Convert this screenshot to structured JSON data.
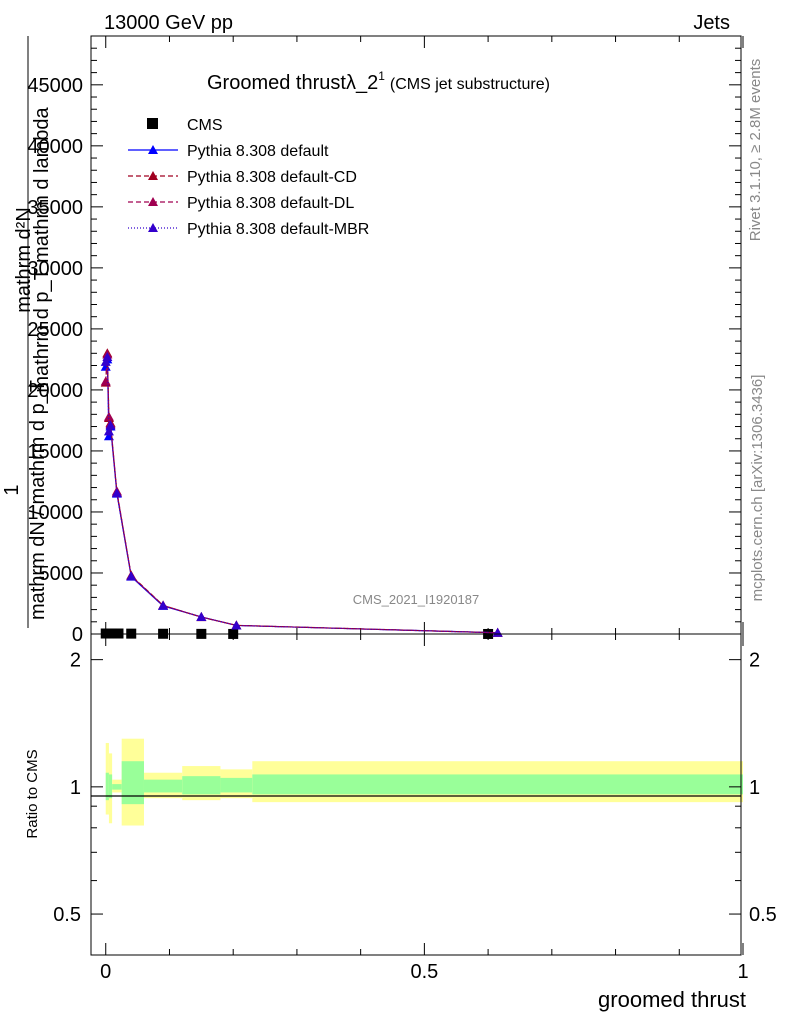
{
  "header": {
    "left": "13000 GeV pp",
    "right": "Jets"
  },
  "side_labels": {
    "rivet": "Rivet 3.1.10, ≥ 2.8M events",
    "mcplots": "mcplots.cern.ch [arXiv:1306.3436]"
  },
  "watermark": "CMS_2021_I1920187",
  "chart_data": [
    {
      "type": "line",
      "title": "Groomed thrustλ_2",
      "title_sup": "1",
      "title_note": "(CMS jet substructure)",
      "ylabel": "1 / mathrm dN / mathrm d p_T mathrm d lambda",
      "ylabel_frac": {
        "num": "mathrm d²N",
        "den": "mathrm d p_T mathrm d lambda",
        "pre": "1",
        "pre_den": "mathrm dN / mathrm d p_T"
      },
      "xlim": [
        -0.02,
        1.0
      ],
      "ylim": [
        0,
        49000
      ],
      "yticks_major": [
        0,
        5000,
        10000,
        15000,
        20000,
        25000,
        30000,
        35000,
        40000,
        45000
      ],
      "ytick_labels": [
        "0",
        "5000",
        "10000",
        "15000",
        "20000",
        "25000",
        "30000",
        "35000",
        "40000",
        "45000"
      ],
      "legend_position": "top-left",
      "cms": {
        "name": "CMS",
        "x": [
          0.0,
          0.005,
          0.01,
          0.02,
          0.04,
          0.09,
          0.15,
          0.2,
          0.6
        ],
        "y": [
          40,
          40,
          40,
          40,
          30,
          20,
          10,
          5,
          2
        ]
      },
      "series": [
        {
          "name": "Pythia 8.308 default",
          "color": "#0000ff",
          "dash": "",
          "x": [
            0.0,
            0.0025,
            0.005,
            0.0075,
            0.0175,
            0.04,
            0.09,
            0.15,
            0.205,
            0.615
          ],
          "y": [
            21900,
            22500,
            16200,
            17000,
            11500,
            4700,
            2300,
            1400,
            700,
            100
          ]
        },
        {
          "name": "Pythia 8.308 default-CD",
          "color": "#a00020",
          "dash": "5,3",
          "x": [
            0.0,
            0.0025,
            0.005,
            0.0075,
            0.0175,
            0.04,
            0.09,
            0.15,
            0.205,
            0.615
          ],
          "y": [
            20600,
            23000,
            17700,
            17300,
            11600,
            4800,
            2350,
            1380,
            710,
            100
          ]
        },
        {
          "name": "Pythia 8.308 default-DL",
          "color": "#a00050",
          "dash": "5,3",
          "x": [
            0.0,
            0.0025,
            0.005,
            0.0075,
            0.0175,
            0.04,
            0.09,
            0.15,
            0.205,
            0.615
          ],
          "y": [
            20700,
            22900,
            17800,
            17200,
            11700,
            4750,
            2340,
            1390,
            705,
            100
          ]
        },
        {
          "name": "Pythia 8.308 default-MBR",
          "color": "#3300cc",
          "dash": "1,2",
          "x": [
            0.0,
            0.0025,
            0.005,
            0.0075,
            0.0175,
            0.04,
            0.09,
            0.15,
            0.205,
            0.615
          ],
          "y": [
            22300,
            22700,
            16600,
            17100,
            11550,
            4720,
            2320,
            1395,
            700,
            100
          ]
        }
      ]
    },
    {
      "type": "area",
      "ylabel": "Ratio to CMS",
      "xlabel": "groomed thrust",
      "xlim": [
        -0.02,
        1.0
      ],
      "ylim": [
        0.4,
        2.3
      ],
      "ytick_labels_left": [
        "0.5",
        "1",
        "2"
      ],
      "ytick_labels_right": [
        "0.5",
        "1",
        "2"
      ],
      "ytick_values": [
        0.5,
        1,
        2
      ],
      "xtick_labels": [
        "0",
        "0.5",
        "1"
      ],
      "xtick_values": [
        0,
        0.5,
        1
      ],
      "bands": [
        {
          "x0": 0.0,
          "x1": 0.005,
          "yellow": [
            0.86,
            1.27
          ],
          "green": [
            0.93,
            1.08
          ]
        },
        {
          "x0": 0.005,
          "x1": 0.01,
          "yellow": [
            0.82,
            1.2
          ],
          "green": [
            0.94,
            1.07
          ]
        },
        {
          "x0": 0.01,
          "x1": 0.025,
          "yellow": [
            0.97,
            1.04
          ],
          "green": [
            0.985,
            1.015
          ]
        },
        {
          "x0": 0.025,
          "x1": 0.06,
          "yellow": [
            0.81,
            1.3
          ],
          "green": [
            0.91,
            1.15
          ]
        },
        {
          "x0": 0.06,
          "x1": 0.12,
          "yellow": [
            0.94,
            1.08
          ],
          "green": [
            0.97,
            1.04
          ]
        },
        {
          "x0": 0.12,
          "x1": 0.18,
          "yellow": [
            0.93,
            1.12
          ],
          "green": [
            0.96,
            1.06
          ]
        },
        {
          "x0": 0.18,
          "x1": 0.23,
          "yellow": [
            0.94,
            1.1
          ],
          "green": [
            0.97,
            1.05
          ]
        },
        {
          "x0": 0.23,
          "x1": 1.0,
          "yellow": [
            0.92,
            1.15
          ],
          "green": [
            0.96,
            1.07
          ]
        }
      ]
    }
  ]
}
